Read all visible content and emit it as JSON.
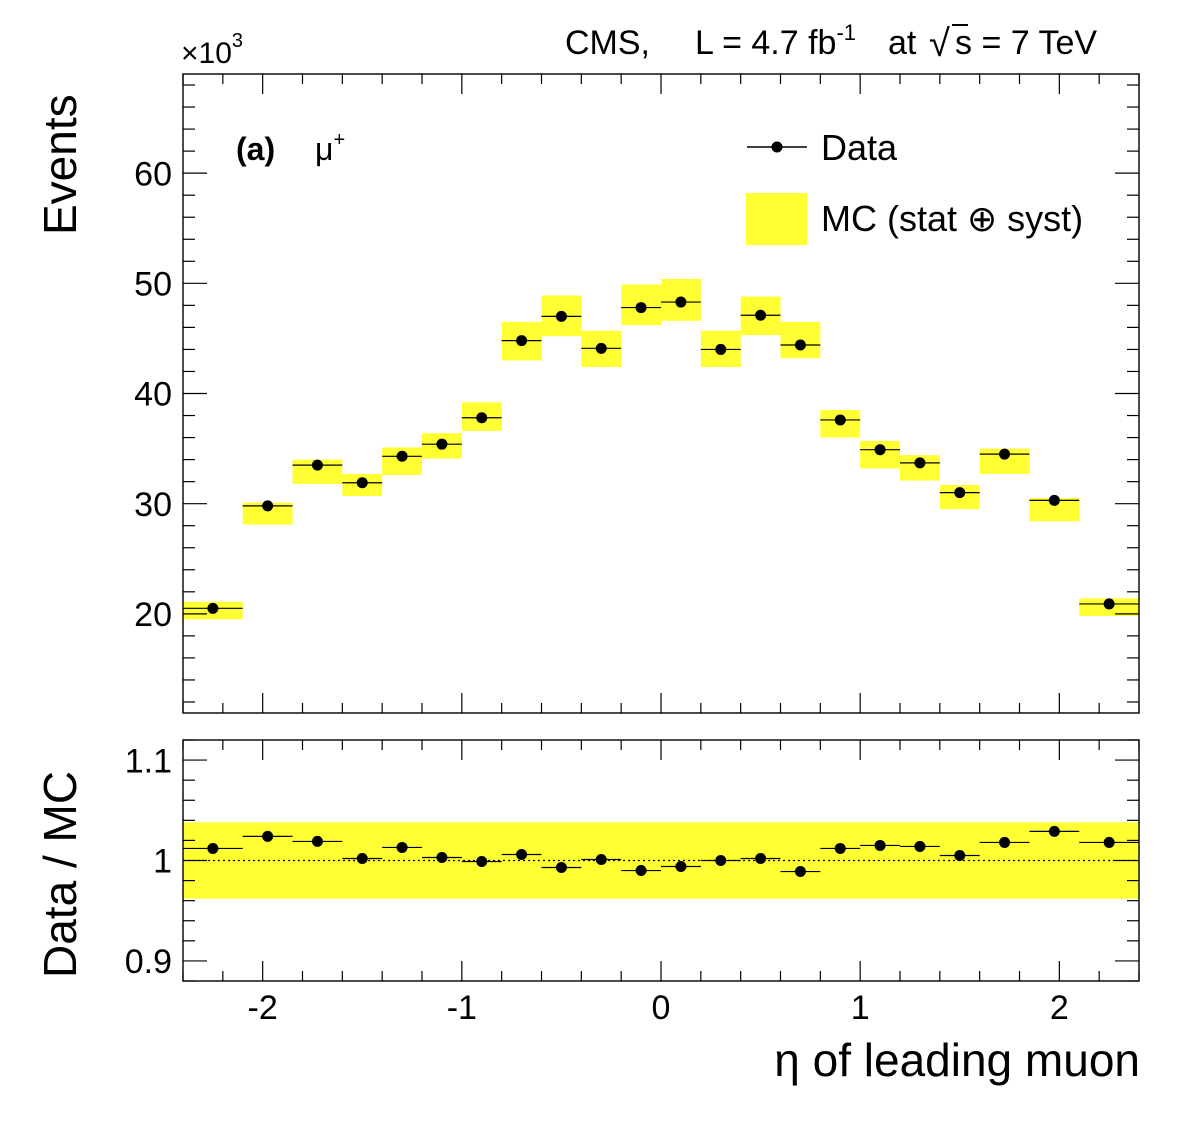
{
  "chart_data": {
    "type": "scatter",
    "header": {
      "experiment": "CMS,",
      "lumi_prefix": "L = 4.7 fb",
      "lumi_exp": "-1",
      "energy_prefix": " at ",
      "sqrt_symbol": "√",
      "energy_rest": "s = 7 TeV"
    },
    "x": {
      "label_greek": "η",
      "label_rest": " of leading muon",
      "range": [
        -2.4,
        2.4
      ],
      "major_ticks": [
        -2,
        -1,
        0,
        1,
        2
      ],
      "tick_labels": [
        "-2",
        "-1",
        "0",
        "1",
        "2"
      ],
      "minor_step": 0.2,
      "bin_edges": [
        -2.4,
        -2.1,
        -1.85,
        -1.6,
        -1.4,
        -1.2,
        -1.0,
        -0.8,
        -0.6,
        -0.4,
        -0.2,
        0.0,
        0.2,
        0.4,
        0.6,
        0.8,
        1.0,
        1.2,
        1.4,
        1.6,
        1.85,
        2.1,
        2.4
      ]
    },
    "top": {
      "ylabel": "Events",
      "multiplier_base": "×10",
      "multiplier_exp": "3",
      "panel_label": "(a)",
      "particle": "μ",
      "particle_charge": "+",
      "ylim": [
        11,
        69
      ],
      "major_ticks": [
        20,
        30,
        40,
        50,
        60
      ],
      "tick_labels": [
        "20",
        "30",
        "40",
        "50",
        "60"
      ],
      "minor_step": 2,
      "legend": {
        "data_label": "Data",
        "mc_label": "MC (stat ⊕ syst)",
        "position": "top-right"
      },
      "data_values": [
        20.5,
        29.8,
        33.5,
        31.9,
        34.3,
        35.4,
        37.8,
        44.8,
        47.0,
        44.1,
        47.8,
        48.3,
        44.0,
        47.1,
        44.4,
        37.6,
        34.9,
        33.7,
        31.0,
        34.5,
        30.3,
        20.9
      ],
      "mc_band_low": [
        19.5,
        28.1,
        31.8,
        30.7,
        32.6,
        34.1,
        36.6,
        43.0,
        45.2,
        42.4,
        46.2,
        46.6,
        42.4,
        45.3,
        43.2,
        36.0,
        33.2,
        32.1,
        29.5,
        32.7,
        28.4,
        19.8
      ],
      "mc_band_high": [
        21.1,
        30.1,
        34.0,
        32.7,
        35.1,
        36.4,
        39.2,
        46.5,
        48.9,
        45.7,
        49.9,
        50.4,
        45.7,
        48.8,
        46.5,
        38.5,
        35.7,
        34.4,
        31.7,
        35.0,
        30.5,
        21.4
      ]
    },
    "bottom": {
      "ylabel": "Data / MC",
      "ylim": [
        0.88,
        1.12
      ],
      "major_ticks": [
        0.9,
        1.0,
        1.1
      ],
      "tick_labels": [
        "0.9",
        "1",
        "1.1"
      ],
      "minor_step": 0.02,
      "band_low": 0.962,
      "band_high": 1.038,
      "reference_line": 1.0,
      "ratio_values": [
        1.012,
        1.024,
        1.019,
        1.002,
        1.013,
        1.003,
        0.999,
        1.006,
        0.993,
        1.001,
        0.99,
        0.994,
        1.0,
        1.002,
        0.989,
        1.012,
        1.015,
        1.014,
        1.005,
        1.018,
        1.029,
        1.018
      ]
    },
    "colors": {
      "band": "#ffff33",
      "marker": "#000000"
    }
  }
}
